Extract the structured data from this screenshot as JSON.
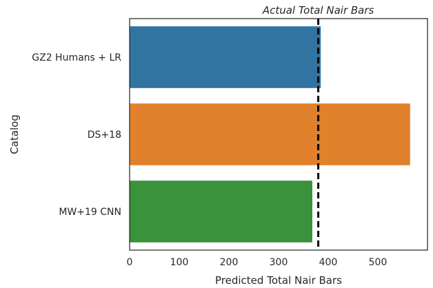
{
  "chart_data": {
    "type": "bar",
    "orientation": "horizontal",
    "categories": [
      "GZ2 Humans + LR",
      "DS+18",
      "MW+19 CNN"
    ],
    "values": [
      385,
      565,
      368
    ],
    "colors": [
      "#3274a1",
      "#e1812c",
      "#3a923a"
    ],
    "xlabel": "Predicted Total Nair Bars",
    "ylabel": "Catalog",
    "xlim": [
      0,
      600
    ],
    "xticks": [
      0,
      100,
      200,
      300,
      400,
      500
    ],
    "grid": false,
    "reference_line": {
      "value": 380,
      "style": "dashed",
      "color": "#000000",
      "label": "Actual Total Nair Bars"
    }
  }
}
